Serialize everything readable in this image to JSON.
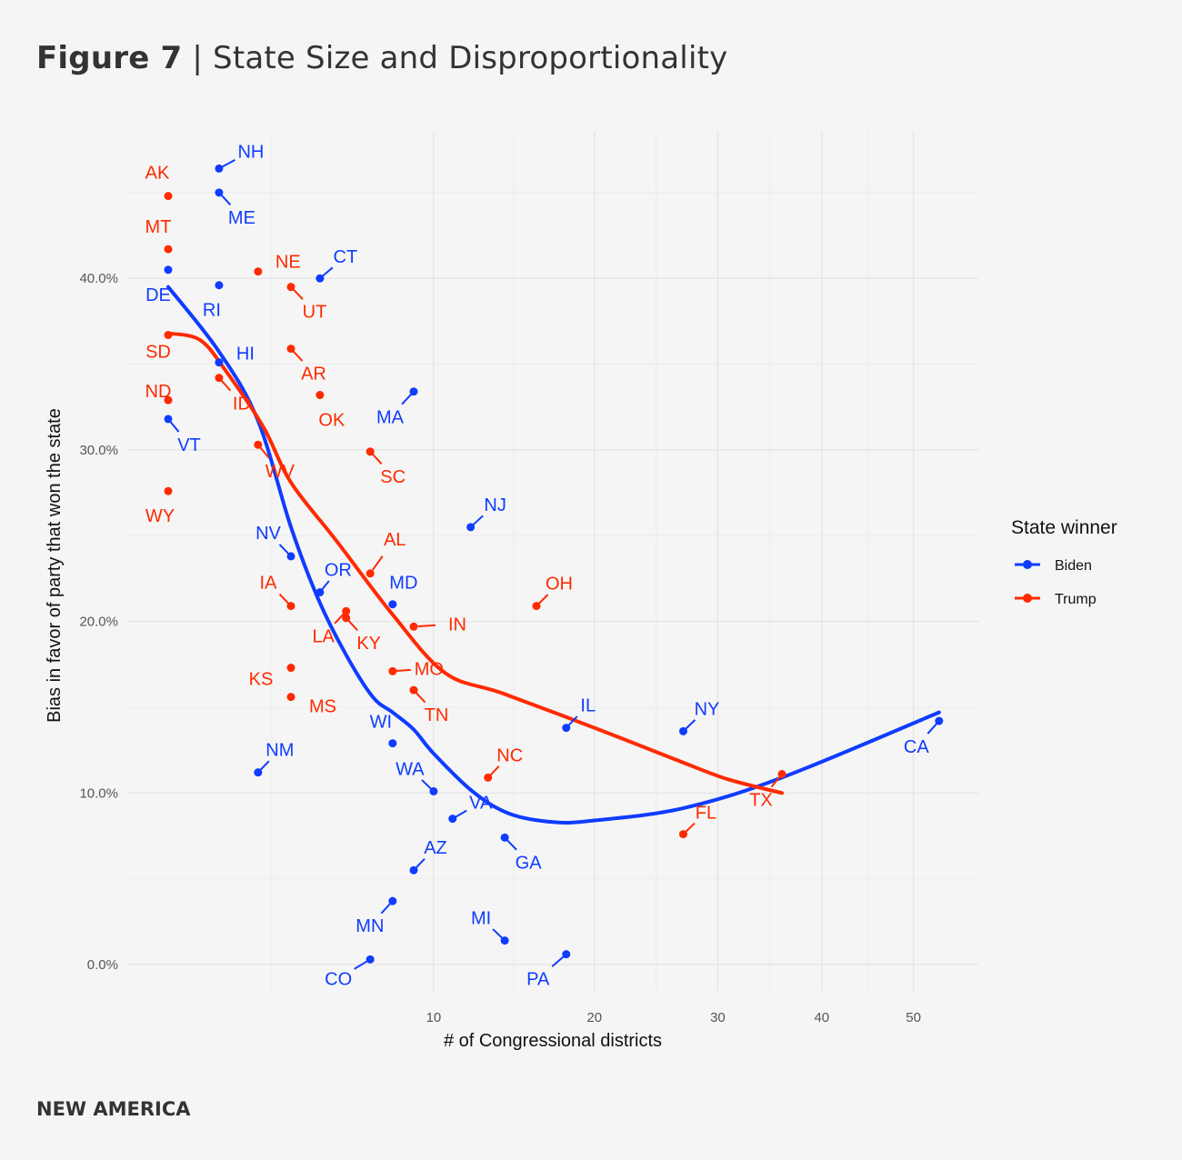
{
  "header": {
    "figure": "Figure 7",
    "separator": "|",
    "title": "State Size and Disproportionality"
  },
  "footer": {
    "brand": "NEW AMERICA"
  },
  "colors": {
    "Biden": "#0f3cff",
    "Trump": "#ff2a00",
    "background": "#f5f5f5",
    "grid": "#e6e6e6"
  },
  "chart_data": {
    "type": "scatter",
    "title": "State Size and Disproportionality",
    "xlabel": "# of Congressional districts",
    "ylabel": "Bias in favor of party that won the state",
    "x_scale": "sqrt",
    "xlim": [
      0.3,
      58
    ],
    "ylim": [
      -2,
      48.5
    ],
    "x_ticks": [
      10,
      20,
      30,
      40,
      50
    ],
    "x_tick_labels": [
      "10",
      "20",
      "30",
      "40",
      "50"
    ],
    "y_ticks": [
      0,
      10,
      20,
      30,
      40
    ],
    "y_tick_labels": [
      "0.0%",
      "10.0%",
      "20.0%",
      "30.0%",
      "40.0%"
    ],
    "grid": true,
    "legend": {
      "title": "State winner",
      "position": "right",
      "entries": [
        "Biden",
        "Trump"
      ]
    },
    "points": [
      {
        "state": "AK",
        "x": 1,
        "y": 44.8,
        "winner": "Trump"
      },
      {
        "state": "NH",
        "x": 2,
        "y": 46.4,
        "winner": "Biden"
      },
      {
        "state": "ME",
        "x": 2,
        "y": 45.0,
        "winner": "Biden"
      },
      {
        "state": "MT",
        "x": 1,
        "y": 41.7,
        "winner": "Trump"
      },
      {
        "state": "DE",
        "x": 1,
        "y": 40.5,
        "winner": "Biden"
      },
      {
        "state": "NE",
        "x": 3,
        "y": 40.4,
        "winner": "Trump"
      },
      {
        "state": "RI",
        "x": 2,
        "y": 39.6,
        "winner": "Biden"
      },
      {
        "state": "UT",
        "x": 4,
        "y": 39.5,
        "winner": "Trump"
      },
      {
        "state": "CT",
        "x": 5,
        "y": 40.0,
        "winner": "Biden"
      },
      {
        "state": "SD",
        "x": 1,
        "y": 36.7,
        "winner": "Trump"
      },
      {
        "state": "AR",
        "x": 4,
        "y": 35.9,
        "winner": "Trump"
      },
      {
        "state": "HI",
        "x": 2,
        "y": 35.1,
        "winner": "Biden"
      },
      {
        "state": "ID",
        "x": 2,
        "y": 34.2,
        "winner": "Trump"
      },
      {
        "state": "ND",
        "x": 1,
        "y": 32.9,
        "winner": "Trump"
      },
      {
        "state": "OK",
        "x": 5,
        "y": 33.2,
        "winner": "Trump"
      },
      {
        "state": "MA",
        "x": 9,
        "y": 33.4,
        "winner": "Biden"
      },
      {
        "state": "VT",
        "x": 1,
        "y": 31.8,
        "winner": "Biden"
      },
      {
        "state": "WV",
        "x": 3,
        "y": 30.3,
        "winner": "Trump"
      },
      {
        "state": "SC",
        "x": 7,
        "y": 29.9,
        "winner": "Trump"
      },
      {
        "state": "WY",
        "x": 1,
        "y": 27.6,
        "winner": "Trump"
      },
      {
        "state": "NJ",
        "x": 12,
        "y": 25.5,
        "winner": "Biden"
      },
      {
        "state": "NV",
        "x": 4,
        "y": 23.8,
        "winner": "Biden"
      },
      {
        "state": "AL",
        "x": 7,
        "y": 22.8,
        "winner": "Trump"
      },
      {
        "state": "OR",
        "x": 5,
        "y": 21.7,
        "winner": "Biden"
      },
      {
        "state": "IA",
        "x": 4,
        "y": 20.9,
        "winner": "Trump"
      },
      {
        "state": "MD",
        "x": 8,
        "y": 21.0,
        "winner": "Biden"
      },
      {
        "state": "OH",
        "x": 16,
        "y": 20.9,
        "winner": "Trump"
      },
      {
        "state": "LA",
        "x": 6,
        "y": 20.6,
        "winner": "Trump"
      },
      {
        "state": "KY",
        "x": 6,
        "y": 20.2,
        "winner": "Trump"
      },
      {
        "state": "IN",
        "x": 9,
        "y": 19.7,
        "winner": "Trump"
      },
      {
        "state": "MO",
        "x": 8,
        "y": 17.1,
        "winner": "Trump"
      },
      {
        "state": "KS",
        "x": 4,
        "y": 17.3,
        "winner": "Trump"
      },
      {
        "state": "MS",
        "x": 4,
        "y": 15.6,
        "winner": "Trump"
      },
      {
        "state": "TN",
        "x": 9,
        "y": 16.0,
        "winner": "Trump"
      },
      {
        "state": "IL",
        "x": 18,
        "y": 13.8,
        "winner": "Biden"
      },
      {
        "state": "NY",
        "x": 27,
        "y": 13.6,
        "winner": "Biden"
      },
      {
        "state": "CA",
        "x": 53,
        "y": 14.2,
        "winner": "Biden"
      },
      {
        "state": "NM",
        "x": 3,
        "y": 11.2,
        "winner": "Biden"
      },
      {
        "state": "WI",
        "x": 8,
        "y": 12.9,
        "winner": "Biden"
      },
      {
        "state": "NC",
        "x": 13,
        "y": 10.9,
        "winner": "Trump"
      },
      {
        "state": "TX",
        "x": 36,
        "y": 11.1,
        "winner": "Trump"
      },
      {
        "state": "WA",
        "x": 10,
        "y": 10.1,
        "winner": "Biden"
      },
      {
        "state": "VA",
        "x": 11,
        "y": 8.5,
        "winner": "Biden"
      },
      {
        "state": "FL",
        "x": 27,
        "y": 7.6,
        "winner": "Trump"
      },
      {
        "state": "GA",
        "x": 14,
        "y": 7.4,
        "winner": "Biden"
      },
      {
        "state": "AZ",
        "x": 9,
        "y": 5.5,
        "winner": "Biden"
      },
      {
        "state": "MN",
        "x": 8,
        "y": 3.7,
        "winner": "Biden"
      },
      {
        "state": "MI",
        "x": 14,
        "y": 1.4,
        "winner": "Biden"
      },
      {
        "state": "PA",
        "x": 18,
        "y": 0.6,
        "winner": "Biden"
      },
      {
        "state": "CO",
        "x": 7,
        "y": 0.3,
        "winner": "Biden"
      }
    ],
    "series": [
      {
        "name": "Biden",
        "type": "smooth",
        "x": [
          1,
          1.98,
          2.98,
          4,
          4.94,
          5.98,
          7.11,
          8,
          9,
          10,
          12.1,
          14.27,
          17.2,
          20,
          26.9,
          36,
          53
        ],
        "y": [
          39.5,
          35.8,
          31.8,
          25.5,
          21.3,
          18.1,
          15.6,
          14.7,
          13.7,
          12.3,
          10.1,
          8.8,
          8.3,
          8.4,
          9.1,
          10.9,
          14.7
        ]
      },
      {
        "name": "Trump",
        "type": "smooth",
        "x": [
          1,
          1.59,
          2.19,
          3.16,
          4,
          5.62,
          8,
          10.6,
          13.9,
          20,
          26.9,
          30.9,
          36
        ],
        "y": [
          36.8,
          36.4,
          34.5,
          31.3,
          28.1,
          24.7,
          20.4,
          17.0,
          15.8,
          13.8,
          11.8,
          10.8,
          10.0
        ]
      }
    ]
  }
}
